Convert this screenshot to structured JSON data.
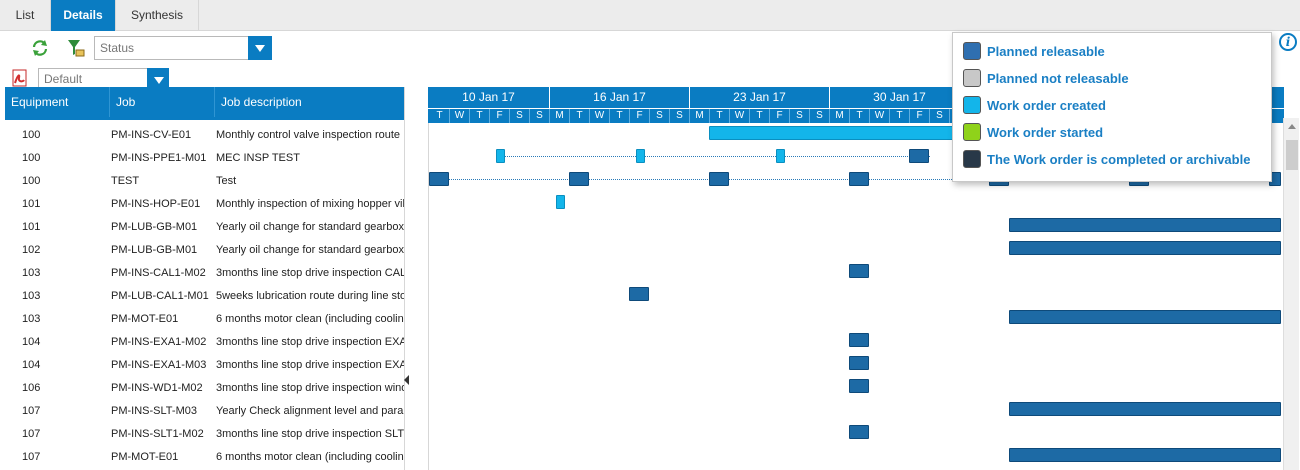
{
  "tabs": [
    {
      "label": "List",
      "active": false
    },
    {
      "label": "Details",
      "active": true
    },
    {
      "label": "Synthesis",
      "active": false
    }
  ],
  "toolbar": {
    "refresh_icon": "refresh-icon",
    "clear_filter_icon": "clear-filter-icon",
    "pdf_icon": "pdf-icon",
    "status_select": {
      "value": "Status"
    },
    "view_select": {
      "value": "Default"
    }
  },
  "grid": {
    "headers": [
      "Equipment",
      "Job",
      "Job description"
    ],
    "rows": [
      {
        "equipment": "100",
        "job": "PM-INS-CV-E01",
        "description": "Monthly control valve inspection route"
      },
      {
        "equipment": "100",
        "job": "PM-INS-PPE1-M01",
        "description": "MEC INSP TEST"
      },
      {
        "equipment": "100",
        "job": "TEST",
        "description": "Test"
      },
      {
        "equipment": "101",
        "job": "PM-INS-HOP-E01",
        "description": "Monthly inspection of mixing hopper vib"
      },
      {
        "equipment": "101",
        "job": "PM-LUB-GB-M01",
        "description": "Yearly oil change for standard gearbox"
      },
      {
        "equipment": "102",
        "job": "PM-LUB-GB-M01",
        "description": "Yearly oil change for standard gearbox"
      },
      {
        "equipment": "103",
        "job": "PM-INS-CAL1-M02",
        "description": "3months line stop drive inspection CAL"
      },
      {
        "equipment": "103",
        "job": "PM-LUB-CAL1-M01",
        "description": "5weeks lubrication route during line sto"
      },
      {
        "equipment": "103",
        "job": "PM-MOT-E01",
        "description": "6 months motor clean (including cooling"
      },
      {
        "equipment": "104",
        "job": "PM-INS-EXA1-M02",
        "description": "3months line stop drive inspection EXA"
      },
      {
        "equipment": "104",
        "job": "PM-INS-EXA1-M03",
        "description": "3months line stop drive inspection EXA"
      },
      {
        "equipment": "106",
        "job": "PM-INS-WD1-M02",
        "description": "3months line stop drive inspection wind"
      },
      {
        "equipment": "107",
        "job": "PM-INS-SLT-M03",
        "description": "Yearly Check alignment level and parall"
      },
      {
        "equipment": "107",
        "job": "PM-INS-SLT1-M02",
        "description": "3months line stop drive inspection SLT1"
      },
      {
        "equipment": "107",
        "job": "PM-MOT-E01",
        "description": "6 months motor clean (including cooling"
      }
    ]
  },
  "gantt": {
    "weeks": [
      "10 Jan 17",
      "16 Jan 17",
      "23 Jan 17",
      "30 Jan 17"
    ],
    "days": [
      "T",
      "W",
      "T",
      "F",
      "S",
      "S",
      "M",
      "T",
      "W",
      "T",
      "F",
      "S",
      "S",
      "M",
      "T",
      "W",
      "T",
      "F",
      "S",
      "S",
      "M",
      "T",
      "W",
      "T",
      "F",
      "S",
      "S",
      "M",
      "T",
      "W",
      "T",
      "F",
      "S",
      "S",
      "M",
      "T",
      "W",
      "T",
      "F",
      "S",
      "S",
      "M"
    ]
  },
  "legend": {
    "items": [
      {
        "label": "Planned releasable",
        "color": "#2f6fb0"
      },
      {
        "label": "Planned not releasable",
        "color": "#c8c8c8"
      },
      {
        "label": "Work order created",
        "color": "#13b5ea"
      },
      {
        "label": "Work order started",
        "color": "#8fd21a"
      },
      {
        "label": "The Work order is completed or archivable",
        "color": "#283848"
      }
    ]
  },
  "colors": {
    "accent": "#0a7cc2",
    "bar_planned": "#1d6aa5",
    "bar_created": "#13b5ea"
  }
}
